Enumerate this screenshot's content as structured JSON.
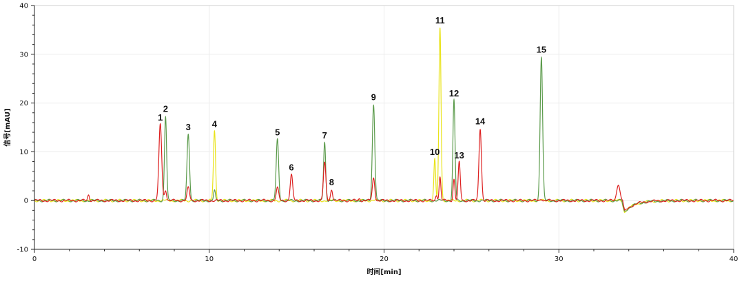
{
  "chart_data": {
    "type": "line",
    "title": "",
    "xlabel": "时间[min]",
    "ylabel": "信号[mAU]",
    "xlim": [
      0,
      40
    ],
    "ylim": [
      -10,
      40
    ],
    "x_ticks": [
      0,
      10,
      20,
      30,
      40
    ],
    "y_ticks": [
      -10,
      0,
      10,
      20,
      30,
      40
    ],
    "grid": true,
    "legend": "none",
    "series": [
      {
        "color": "#dd1f1f",
        "peaks": [
          {
            "rt": 3.1,
            "height": 1.2,
            "width": 0.05
          },
          {
            "rt": 7.2,
            "height": 15.6,
            "width": 0.08
          },
          {
            "rt": 7.5,
            "height": 2.2,
            "width": 0.06
          },
          {
            "rt": 8.8,
            "height": 2.6,
            "width": 0.07
          },
          {
            "rt": 13.9,
            "height": 2.6,
            "width": 0.07
          },
          {
            "rt": 14.7,
            "height": 5.3,
            "width": 0.07
          },
          {
            "rt": 16.6,
            "height": 7.7,
            "width": 0.07
          },
          {
            "rt": 17.0,
            "height": 2.3,
            "width": 0.06
          },
          {
            "rt": 18.6,
            "height": 0.4,
            "width": 0.05
          },
          {
            "rt": 19.4,
            "height": 4.6,
            "width": 0.07
          },
          {
            "rt": 23.0,
            "height": 1.2,
            "width": 0.05
          },
          {
            "rt": 23.2,
            "height": 4.8,
            "width": 0.05
          },
          {
            "rt": 24.0,
            "height": 4.4,
            "width": 0.05
          },
          {
            "rt": 24.3,
            "height": 7.8,
            "width": 0.06
          },
          {
            "rt": 25.5,
            "height": 14.8,
            "width": 0.07
          },
          {
            "rt": 29.0,
            "height": 0.4,
            "width": 0.06
          }
        ]
      },
      {
        "color": "#5a9a4a",
        "peaks": [
          {
            "rt": 7.5,
            "height": 17.3,
            "width": 0.06
          },
          {
            "rt": 8.8,
            "height": 13.6,
            "width": 0.07
          },
          {
            "rt": 10.3,
            "height": 2.0,
            "width": 0.05
          },
          {
            "rt": 13.9,
            "height": 12.5,
            "width": 0.07
          },
          {
            "rt": 16.6,
            "height": 11.9,
            "width": 0.06
          },
          {
            "rt": 19.4,
            "height": 19.7,
            "width": 0.07
          },
          {
            "rt": 24.0,
            "height": 20.5,
            "width": 0.06
          },
          {
            "rt": 29.0,
            "height": 29.5,
            "width": 0.07
          }
        ]
      },
      {
        "color": "#e9e31a",
        "peaks": [
          {
            "rt": 10.3,
            "height": 14.2,
            "width": 0.06
          },
          {
            "rt": 22.9,
            "height": 8.5,
            "width": 0.05
          },
          {
            "rt": 23.2,
            "height": 35.5,
            "width": 0.06
          }
        ]
      }
    ],
    "disturbance": {
      "rt": 33.4,
      "height": 3.4,
      "trough": -2.8
    },
    "annotations": [
      {
        "text": "1",
        "x": 7.2,
        "y": 15.6
      },
      {
        "text": "2",
        "x": 7.5,
        "y": 17.3
      },
      {
        "text": "3",
        "x": 8.8,
        "y": 13.6
      },
      {
        "text": "4",
        "x": 10.3,
        "y": 14.2
      },
      {
        "text": "5",
        "x": 13.9,
        "y": 12.5
      },
      {
        "text": "6",
        "x": 14.7,
        "y": 5.3
      },
      {
        "text": "7",
        "x": 16.6,
        "y": 11.9
      },
      {
        "text": "8",
        "x": 17.0,
        "y": 2.3
      },
      {
        "text": "9",
        "x": 19.4,
        "y": 19.7
      },
      {
        "text": "10",
        "x": 22.9,
        "y": 8.5
      },
      {
        "text": "11",
        "x": 23.2,
        "y": 35.5
      },
      {
        "text": "12",
        "x": 24.0,
        "y": 20.5
      },
      {
        "text": "13",
        "x": 24.3,
        "y": 7.8
      },
      {
        "text": "14",
        "x": 25.5,
        "y": 14.8
      },
      {
        "text": "15",
        "x": 29.0,
        "y": 29.5
      }
    ]
  }
}
